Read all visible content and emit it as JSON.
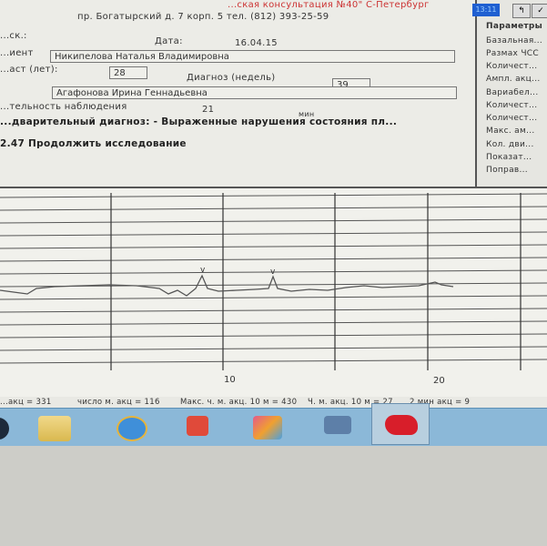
{
  "header": {
    "clinic_line": "...ская консультация №40\" С-Петербург",
    "address_line": "пр. Богатырский д. 7 корп. 5 тел. (812) 393-25-59"
  },
  "form": {
    "left_label_top": "...ск.:",
    "date_label": "Дата:",
    "date_value": "16.04.15",
    "patient_label": "...иент",
    "patient_value": "Никипелова Наталья Владимировна",
    "age_label": "...аст (лет):",
    "age_value": "28",
    "term_label": "Диагноз (недель)",
    "term_value": "39",
    "doctor_label": "...",
    "doctor_value": "Агафонова Ирина Геннадьевна",
    "duration_label": "...тельность наблюдения",
    "duration_value": "21",
    "duration_unit": "мин",
    "diagnosis_line": "...дварительный диагноз: - Выраженные нарушения состояния пл...",
    "recommendation_line": "2.47 Продолжить исследование"
  },
  "right_panel": {
    "clock": "13:11",
    "params_title": "Параметры",
    "items": [
      "Базальная...",
      "Размах ЧСС",
      "Количест...",
      "Ампл. акц...",
      "Вариабел...",
      "Количест...",
      "Количест...",
      "Макс. ам...",
      "Кол. дви...",
      "Показат...",
      "Поправ..."
    ]
  },
  "chart": {
    "x_ticks": [
      "10",
      "20"
    ],
    "trace_color": "#555555"
  },
  "status_bar": {
    "items": [
      "...акц = 331",
      "число м. акц = 116",
      "Макс. ч. м. акц. 10 м = 430",
      "Ч. м. акц. 10 м = 27",
      "2 мин акц = 9"
    ]
  },
  "taskbar": {
    "icons": [
      "start-orb-icon",
      "file-explorer-icon",
      "internet-explorer-icon",
      "media-player-icon",
      "photo-gallery-icon",
      "network-icon",
      "ctg-app-icon"
    ]
  }
}
